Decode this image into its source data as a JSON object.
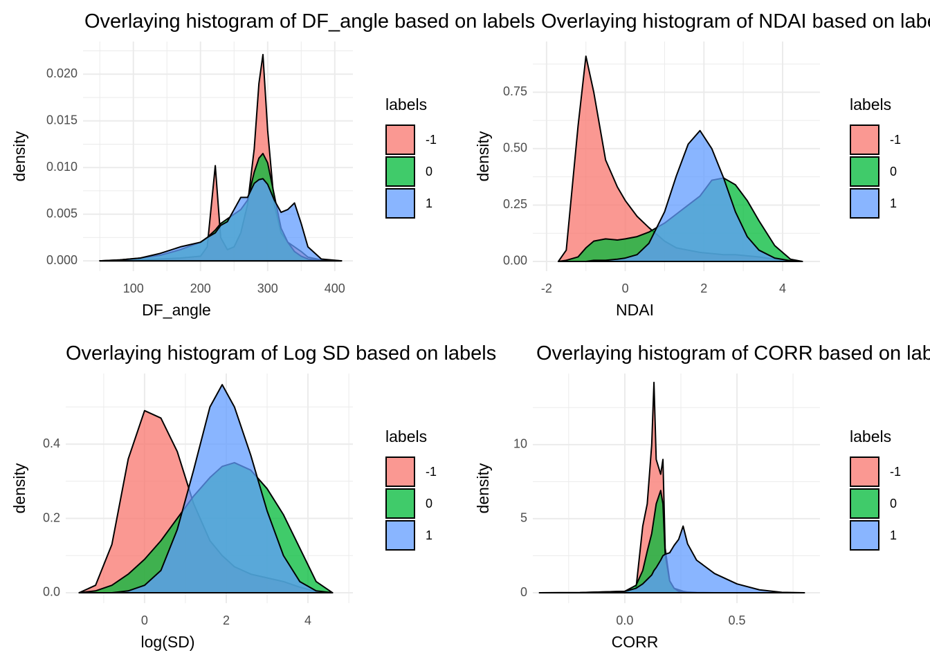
{
  "chart_data": [
    {
      "type": "density",
      "title": "Overlaying histogram of DF_angle based on labels",
      "xlabel": "DF_angle",
      "ylabel": "density",
      "legend_title": "labels",
      "xlim": [
        25,
        427
      ],
      "ylim": [
        -0.0011,
        0.0235
      ],
      "xticks": [
        100,
        200,
        300,
        400
      ],
      "yticks": [
        {
          "value": 0,
          "label": "0.000"
        },
        {
          "value": 0.005,
          "label": "0.005"
        },
        {
          "value": 0.01,
          "label": "0.010"
        },
        {
          "value": 0.015,
          "label": "0.015"
        },
        {
          "value": 0.02,
          "label": "0.020"
        }
      ],
      "grid": true,
      "x": [
        50,
        80,
        110,
        140,
        170,
        200,
        210,
        222,
        230,
        240,
        250,
        260,
        270,
        280,
        287,
        293,
        300,
        310,
        320,
        330,
        340,
        350,
        360,
        380,
        410
      ],
      "series": [
        {
          "name": "-1",
          "color": "#F8766D",
          "values": [
            0,
            0,
            0.0001,
            0.0002,
            0.0003,
            0.0005,
            0.0015,
            0.0102,
            0.0025,
            0.0012,
            0.0015,
            0.003,
            0.006,
            0.012,
            0.019,
            0.0221,
            0.014,
            0.006,
            0.003,
            0.002,
            0.0015,
            0.001,
            0.0004,
            0.0001,
            0
          ]
        },
        {
          "name": "0",
          "color": "#00BA38",
          "values": [
            0,
            0.0001,
            0.0003,
            0.0006,
            0.0012,
            0.002,
            0.0025,
            0.0033,
            0.004,
            0.0045,
            0.005,
            0.0055,
            0.0065,
            0.0095,
            0.011,
            0.0115,
            0.0105,
            0.007,
            0.0035,
            0.002,
            0.001,
            0.0005,
            0.0002,
            0,
            0
          ]
        },
        {
          "name": "1",
          "color": "#619CFF",
          "values": [
            0,
            0.0001,
            0.0003,
            0.0008,
            0.0015,
            0.002,
            0.0025,
            0.003,
            0.0038,
            0.0042,
            0.0055,
            0.0068,
            0.0068,
            0.0083,
            0.0087,
            0.0088,
            0.0082,
            0.0065,
            0.0052,
            0.0055,
            0.0062,
            0.004,
            0.0015,
            0.0002,
            0
          ]
        }
      ]
    },
    {
      "type": "density",
      "title": "Overlaying histogram of NDAI based on labels",
      "xlabel": "NDAI",
      "ylabel": "density",
      "legend_title": "labels",
      "xlim": [
        -2.35,
        4.95
      ],
      "ylim": [
        -0.043,
        0.975
      ],
      "xticks": [
        -2,
        0,
        2,
        4
      ],
      "yticks": [
        {
          "value": 0,
          "label": "0.00"
        },
        0.25,
        {
          "value": 0.5,
          "label": "0.50"
        },
        0.75
      ],
      "grid": true,
      "x": [
        -1.7,
        -1.5,
        -1.2,
        -1,
        -0.8,
        -0.5,
        -0.2,
        0,
        0.3,
        0.6,
        1,
        1.3,
        1.6,
        1.9,
        2.2,
        2.5,
        2.8,
        3.1,
        3.4,
        3.8,
        4.2,
        4.5
      ],
      "series": [
        {
          "name": "-1",
          "color": "#F8766D",
          "values": [
            0,
            0.05,
            0.6,
            0.91,
            0.75,
            0.45,
            0.33,
            0.27,
            0.2,
            0.15,
            0.09,
            0.06,
            0.05,
            0.04,
            0.035,
            0.03,
            0.03,
            0.025,
            0.02,
            0.01,
            0,
            0
          ]
        },
        {
          "name": "0",
          "color": "#00BA38",
          "values": [
            0,
            0.005,
            0.02,
            0.06,
            0.09,
            0.1,
            0.095,
            0.1,
            0.11,
            0.13,
            0.17,
            0.21,
            0.25,
            0.29,
            0.36,
            0.37,
            0.34,
            0.27,
            0.18,
            0.07,
            0.01,
            0
          ]
        },
        {
          "name": "1",
          "color": "#619CFF",
          "values": [
            0,
            0,
            0,
            0,
            0.005,
            0.005,
            0.01,
            0.015,
            0.03,
            0.08,
            0.22,
            0.38,
            0.52,
            0.58,
            0.5,
            0.37,
            0.22,
            0.11,
            0.05,
            0.015,
            0.003,
            0
          ]
        }
      ]
    },
    {
      "type": "density",
      "title": "Overlaying histogram of Log SD based on labels",
      "xlabel": "log(SD)",
      "ylabel": "density",
      "legend_title": "labels",
      "xlim": [
        -1.93,
        5.1
      ],
      "ylim": [
        -0.028,
        0.59
      ],
      "xticks": [
        0,
        2,
        4
      ],
      "yticks": [
        {
          "value": 0,
          "label": "0.0"
        },
        0.2,
        0.4
      ],
      "grid": true,
      "x": [
        -1.6,
        -1.2,
        -0.8,
        -0.4,
        0,
        0.4,
        0.8,
        1.2,
        1.6,
        1.9,
        2.2,
        2.6,
        3,
        3.4,
        3.8,
        4.2,
        4.6
      ],
      "series": [
        {
          "name": "-1",
          "color": "#F8766D",
          "values": [
            0,
            0.02,
            0.13,
            0.36,
            0.49,
            0.47,
            0.38,
            0.24,
            0.14,
            0.1,
            0.07,
            0.05,
            0.04,
            0.03,
            0.015,
            0.003,
            0
          ]
        },
        {
          "name": "0",
          "color": "#00BA38",
          "values": [
            0,
            0.005,
            0.02,
            0.05,
            0.09,
            0.14,
            0.2,
            0.26,
            0.31,
            0.34,
            0.35,
            0.33,
            0.28,
            0.21,
            0.12,
            0.03,
            0
          ]
        },
        {
          "name": "1",
          "color": "#619CFF",
          "values": [
            0,
            0,
            0,
            0.005,
            0.02,
            0.06,
            0.17,
            0.33,
            0.5,
            0.56,
            0.5,
            0.37,
            0.22,
            0.1,
            0.03,
            0.005,
            0
          ]
        }
      ]
    },
    {
      "type": "density",
      "title": "Overlaying histogram of CORR based on labels",
      "xlabel": "CORR",
      "ylabel": "density",
      "legend_title": "labels",
      "xlim": [
        -0.41,
        0.87
      ],
      "ylim": [
        -0.7,
        14.8
      ],
      "xticks": [
        {
          "value": 0,
          "label": "0.0"
        },
        0.5
      ],
      "yticks": [
        0,
        5,
        10
      ],
      "grid": true,
      "x": [
        -0.38,
        -0.2,
        0,
        0.05,
        0.08,
        0.1,
        0.12,
        0.13,
        0.14,
        0.16,
        0.17,
        0.18,
        0.2,
        0.22,
        0.24,
        0.26,
        0.28,
        0.32,
        0.4,
        0.5,
        0.6,
        0.7,
        0.8
      ],
      "series": [
        {
          "name": "-1",
          "color": "#F8766D",
          "values": [
            0,
            0,
            0.05,
            0.3,
            4.5,
            6,
            10,
            14.2,
            9,
            8,
            9,
            3,
            0.8,
            0.3,
            0.2,
            0.1,
            0.05,
            0.02,
            0,
            0,
            0,
            0,
            0
          ]
        },
        {
          "name": "0",
          "color": "#00BA38",
          "values": [
            0,
            0.01,
            0.1,
            0.5,
            1.5,
            2.8,
            4,
            5,
            6,
            6.9,
            6,
            2.6,
            0.8,
            0.3,
            0.1,
            0.05,
            0.02,
            0,
            0,
            0,
            0,
            0,
            0
          ]
        },
        {
          "name": "1",
          "color": "#619CFF",
          "values": [
            0,
            0.01,
            0.1,
            0.3,
            0.6,
            0.9,
            1.2,
            1.5,
            1.7,
            2.2,
            2.5,
            2.6,
            2.7,
            3.2,
            3.6,
            4.5,
            3.3,
            2.2,
            1.3,
            0.6,
            0.2,
            0.03,
            0
          ]
        }
      ]
    }
  ]
}
